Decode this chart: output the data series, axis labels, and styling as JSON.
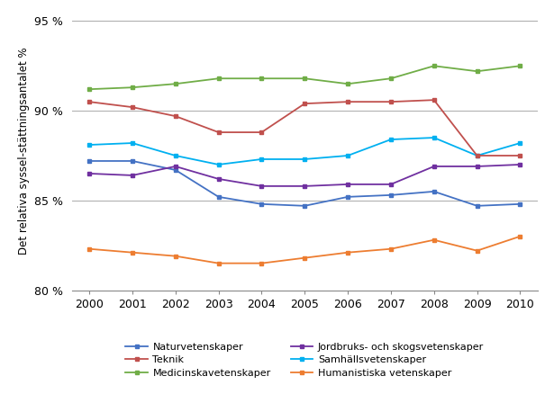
{
  "years": [
    2000,
    2001,
    2002,
    2003,
    2004,
    2005,
    2006,
    2007,
    2008,
    2009,
    2010
  ],
  "series": {
    "Naturvetenskaper": [
      87.2,
      87.2,
      86.7,
      85.2,
      84.8,
      84.7,
      85.2,
      85.3,
      85.5,
      84.7,
      84.8
    ],
    "Medicinskavetenskaper": [
      91.2,
      91.3,
      91.5,
      91.8,
      91.8,
      91.8,
      91.5,
      91.8,
      92.5,
      92.2,
      92.5
    ],
    "Samhällsvetenskaper": [
      88.1,
      88.2,
      87.5,
      87.0,
      87.3,
      87.3,
      87.5,
      88.4,
      88.5,
      87.5,
      88.2
    ],
    "Teknik": [
      90.5,
      90.2,
      89.7,
      88.8,
      88.8,
      90.4,
      90.5,
      90.5,
      90.6,
      87.5,
      87.5
    ],
    "Jordbruks- och skogsvetenskaper": [
      86.5,
      86.4,
      86.9,
      86.2,
      85.8,
      85.8,
      85.9,
      85.9,
      86.9,
      86.9,
      87.0
    ],
    "Humanistiska vetenskaper": [
      82.3,
      82.1,
      81.9,
      81.5,
      81.5,
      81.8,
      82.1,
      82.3,
      82.8,
      82.2,
      83.0
    ]
  },
  "colors": {
    "Naturvetenskaper": "#4472C4",
    "Medicinskavetenskaper": "#70AD47",
    "Samhällsvetenskaper": "#00B0F0",
    "Teknik": "#C0504D",
    "Jordbruks- och skogsvetenskaper": "#7030A0",
    "Humanistiska vetenskaper": "#ED7D31"
  },
  "ylabel": "Det relativa syssel­stättningsantalet %",
  "ylim": [
    80,
    95.5
  ],
  "yticks": [
    80,
    85,
    90,
    95
  ],
  "ytick_labels": [
    "80 %",
    "85 %",
    "90 %",
    "95 %"
  ],
  "background_color": "#ffffff",
  "grid_color": "#AAAAAA",
  "legend_col1": [
    "Naturvetenskaper",
    "Medicinskavetenskaper",
    "Samhällsvetenskaper"
  ],
  "legend_col2": [
    "Teknik",
    "Jordbruks- och skogsvetenskaper",
    "Humanistiska vetenskaper"
  ]
}
